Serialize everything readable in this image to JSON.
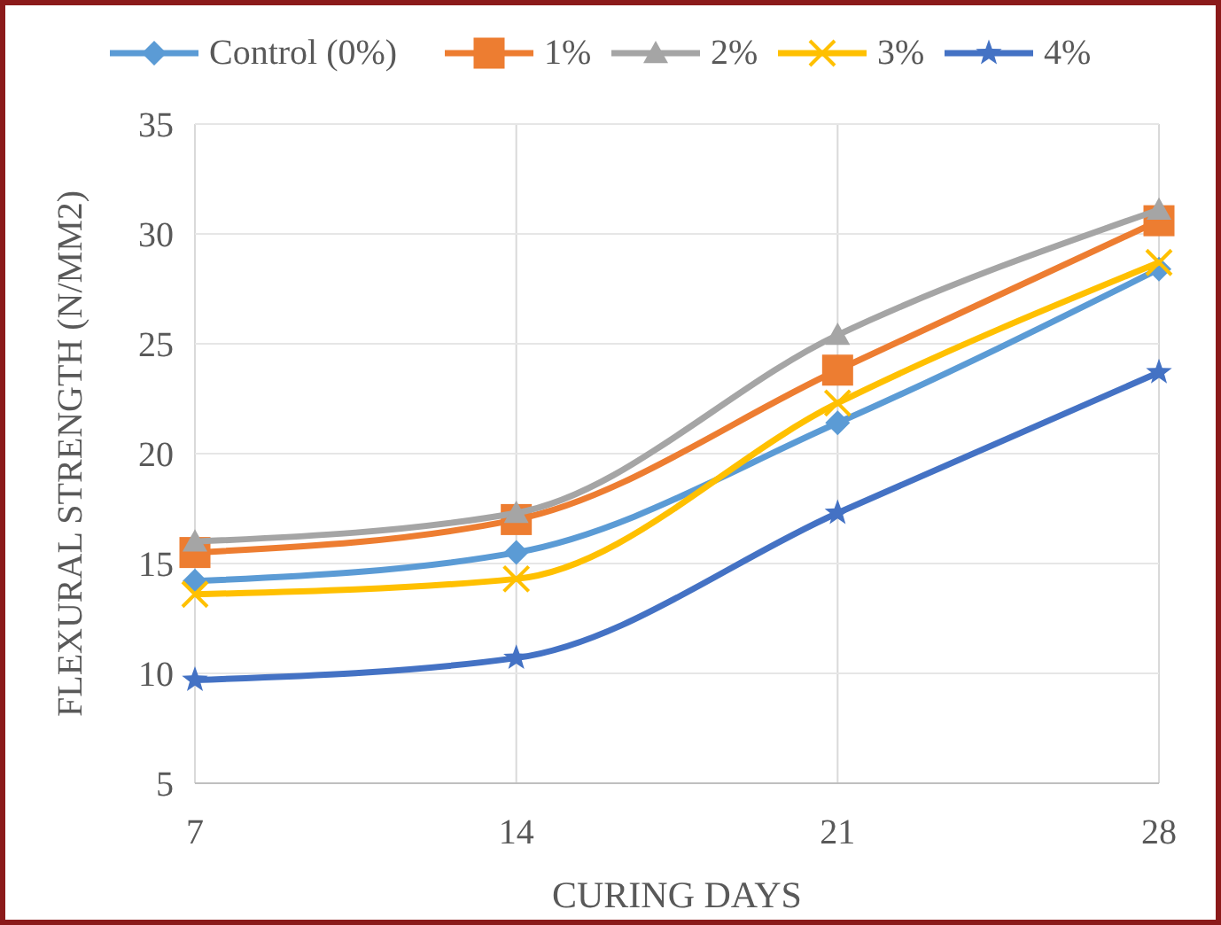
{
  "chart_data": {
    "type": "line",
    "xlabel": "CURING DAYS",
    "ylabel": "FLEXURAL STRENGTH (N/MM2)",
    "x": [
      7,
      14,
      21,
      28
    ],
    "xlim": [
      7,
      28
    ],
    "xticks": [
      7,
      14,
      21,
      28
    ],
    "ylim": [
      5,
      35
    ],
    "yticks": [
      5,
      10,
      15,
      20,
      25,
      30,
      35
    ],
    "grid": true,
    "legend": "top",
    "line_style": "solid",
    "series": [
      {
        "name": "Control (0%)",
        "color": "#5b9bd5",
        "marker": "diamond",
        "values": [
          14.2,
          15.5,
          21.4,
          28.4
        ]
      },
      {
        "name": "1%",
        "color": "#ed7d31",
        "marker": "square",
        "values": [
          15.5,
          17.0,
          23.8,
          30.6
        ]
      },
      {
        "name": "2%",
        "color": "#a5a5a5",
        "marker": "triangle",
        "values": [
          16.0,
          17.3,
          25.4,
          31.1
        ]
      },
      {
        "name": "3%",
        "color": "#ffc000",
        "marker": "cross",
        "values": [
          13.6,
          14.3,
          22.3,
          28.7
        ]
      },
      {
        "name": "4%",
        "color": "#4472c4",
        "marker": "star",
        "values": [
          9.7,
          10.7,
          17.3,
          23.7
        ]
      }
    ]
  }
}
